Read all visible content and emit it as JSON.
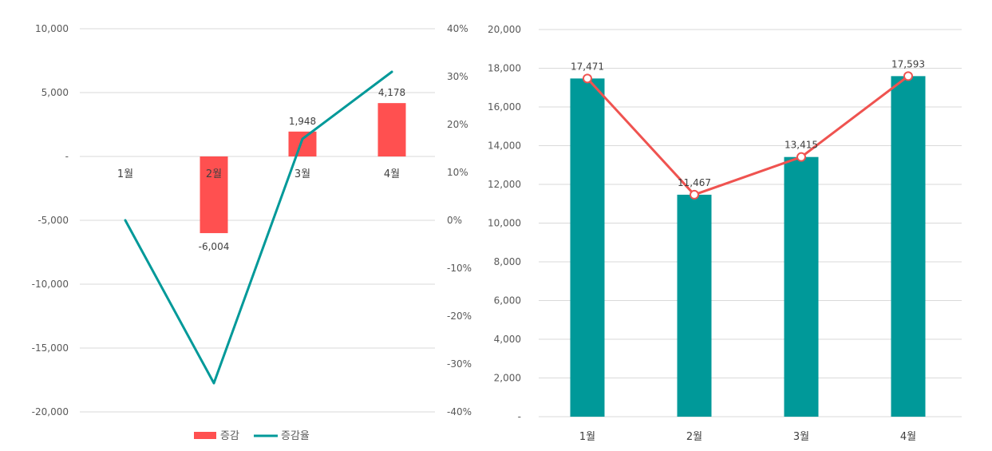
{
  "chart_data": [
    {
      "type": "bar",
      "categories": [
        "1월",
        "2월",
        "3월",
        "4월"
      ],
      "series": [
        {
          "name": "증감",
          "kind": "bar",
          "axis": "left",
          "color": "#ff5050",
          "values": [
            0,
            -6004,
            1948,
            4178
          ],
          "labels": [
            "",
            "-6,004",
            "1,948",
            "4,178"
          ]
        },
        {
          "name": "증감율",
          "kind": "line",
          "axis": "right",
          "color": "#009999",
          "values": [
            0,
            -34,
            17,
            31
          ]
        }
      ],
      "y_left": {
        "min": -20000,
        "max": 10000,
        "step": 5000,
        "tick_labels": [
          "-20,000",
          "-15,000",
          "-10,000",
          "-5,000",
          "-",
          "5,000",
          "10,000"
        ]
      },
      "y_right": {
        "min": -40,
        "max": 40,
        "step": 10,
        "tick_labels": [
          "-40%",
          "-30%",
          "-20%",
          "-10%",
          "0%",
          "10%",
          "20%",
          "30%",
          "40%"
        ]
      },
      "grid": true,
      "legend": "bottom"
    },
    {
      "type": "bar",
      "categories": [
        "1월",
        "2월",
        "3월",
        "4월"
      ],
      "series": [
        {
          "name": "bars",
          "kind": "bar",
          "color": "#009999",
          "values": [
            17471,
            11467,
            13415,
            17593
          ]
        },
        {
          "name": "line",
          "kind": "line",
          "color": "#ef5350",
          "values": [
            17471,
            11467,
            13415,
            17593
          ],
          "labels": [
            "17,471",
            "11,467",
            "13,415",
            "17,593"
          ]
        }
      ],
      "y": {
        "min": 0,
        "max": 20000,
        "step": 2000,
        "tick_labels": [
          "-",
          "2,000",
          "4,000",
          "6,000",
          "8,000",
          "10,000",
          "12,000",
          "14,000",
          "16,000",
          "18,000",
          "20,000"
        ]
      },
      "grid": true,
      "legend": "none"
    }
  ]
}
